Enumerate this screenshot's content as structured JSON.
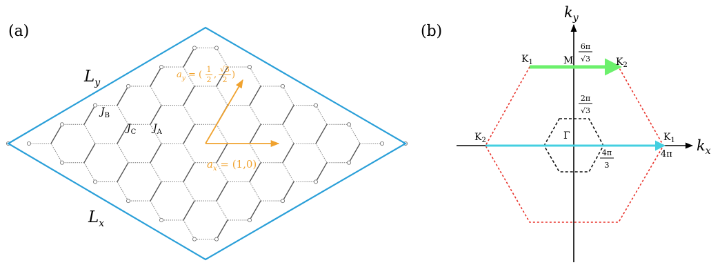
{
  "panel_a": {
    "label": "(a)",
    "Ly": {
      "main": "L",
      "sub": "y"
    },
    "Lx": {
      "main": "L",
      "sub": "x"
    },
    "JA": {
      "main": "J",
      "sub": "A"
    },
    "JB": {
      "main": "J",
      "sub": "B"
    },
    "JC": {
      "main": "J",
      "sub": "C"
    },
    "ax_vector": {
      "main": "a",
      "sub": "x",
      "value": " = (1,0)"
    },
    "ay_vector": {
      "main": "a",
      "sub": "y",
      "eq": " = (",
      "num1": "1",
      "den1": "2",
      "comma": ",",
      "num2": "√3",
      "den2": "2",
      "close": ")"
    },
    "colors": {
      "border": "#2a9fd8",
      "arrows": "#f0a22e",
      "bond_solid": "#555555",
      "bond_dotted": "#888888"
    }
  },
  "panel_b": {
    "label": "(b)",
    "kx": {
      "main": "k",
      "sub": "x"
    },
    "ky": {
      "main": "k",
      "sub": "y"
    },
    "points": {
      "K1_top": {
        "main": "K",
        "sub": "1"
      },
      "K2_top": {
        "main": "K",
        "sub": "2"
      },
      "M": "M",
      "K2_left": {
        "main": "K",
        "sub": "2"
      },
      "K1_right": {
        "main": "K",
        "sub": "1"
      },
      "Gamma": "Γ"
    },
    "ticks": {
      "six_pi": {
        "num": "6π",
        "den": "√3"
      },
      "two_pi": {
        "num": "2π",
        "den": "√3"
      },
      "four_pi_3": {
        "num": "4π",
        "den": "3"
      },
      "four_pi": "4π"
    },
    "colors": {
      "outer_hex": "#e8322a",
      "inner_hex": "#111111",
      "green_arrow": "#6cf06c",
      "cyan_arrow": "#44cfe0"
    }
  }
}
